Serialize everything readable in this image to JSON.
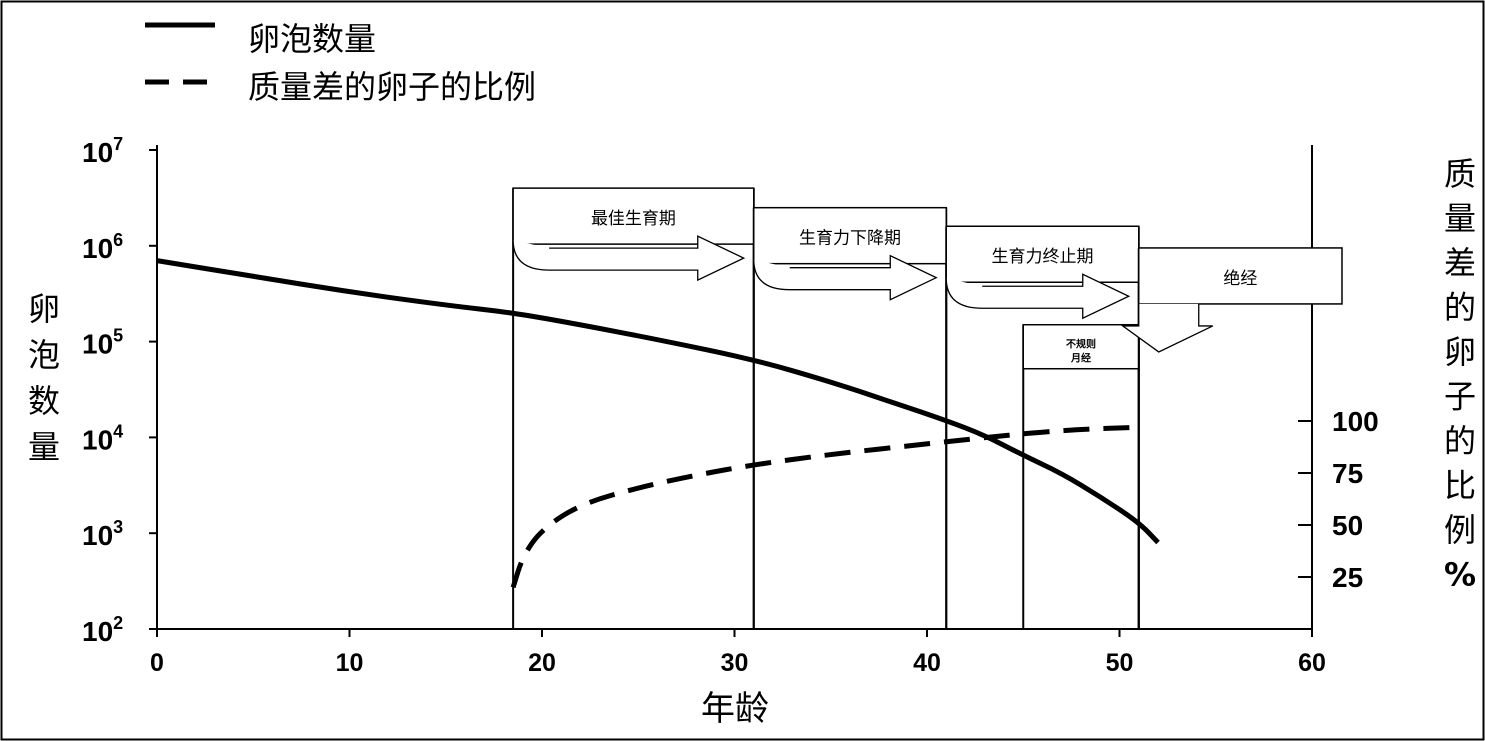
{
  "chart_data": {
    "type": "line",
    "title": "",
    "xlabel": "年龄",
    "ylabel_left": "卵泡数量",
    "ylabel_right": "质量差的卵子的比例%",
    "xlim": [
      0,
      60
    ],
    "x_ticks": [
      "0",
      "10",
      "20",
      "30",
      "40",
      "50",
      "60"
    ],
    "y_left_scale": "log",
    "y_left_range": [
      100,
      10000000
    ],
    "y_left_ticks": [
      {
        "base": "10",
        "exp": "2"
      },
      {
        "base": "10",
        "exp": "3"
      },
      {
        "base": "10",
        "exp": "4"
      },
      {
        "base": "10",
        "exp": "5"
      },
      {
        "base": "10",
        "exp": "6"
      },
      {
        "base": "10",
        "exp": "7"
      }
    ],
    "y_right_ticks": [
      "25",
      "50",
      "75",
      "100"
    ],
    "y_right_range": [
      0,
      100
    ],
    "legend_position": "top-left",
    "grid": false,
    "series": [
      {
        "name": "卵泡数量",
        "style": "solid",
        "axis": "left",
        "x": [
          0,
          5,
          10,
          15,
          18.5,
          22,
          26,
          31,
          35,
          38,
          41,
          43,
          45,
          47,
          49,
          51,
          52
        ],
        "y": [
          700000,
          480000,
          330000,
          240000,
          200000,
          150000,
          105000,
          65000,
          38000,
          24000,
          15000,
          10500,
          6500,
          4200,
          2400,
          1300,
          800
        ]
      },
      {
        "name": "质量差的卵子的比例",
        "style": "dashed",
        "axis": "right",
        "x": [
          18.5,
          19,
          20,
          22,
          25,
          28,
          31,
          35,
          40,
          45,
          48,
          51
        ],
        "y": [
          20,
          35,
          48,
          60,
          68,
          74,
          79,
          84,
          89,
          94,
          96,
          97
        ]
      }
    ],
    "phases": [
      {
        "label": "最佳生育期",
        "start": 18.5,
        "end": 31,
        "top": 4000000,
        "label_font": 17
      },
      {
        "label": "生育力下降期",
        "start": 31,
        "end": 41,
        "top": 2500000,
        "label_font": 17
      },
      {
        "label": "生育力终止期",
        "start": 41,
        "end": 51,
        "top": 1600000,
        "label_font": 17
      },
      {
        "label": "不规则月经",
        "start": 45,
        "end": 51,
        "top": 150000,
        "label_font": 10
      },
      {
        "label": "绝经",
        "start": 51,
        "end": 60,
        "top": 950000,
        "label_font": 17
      }
    ]
  }
}
